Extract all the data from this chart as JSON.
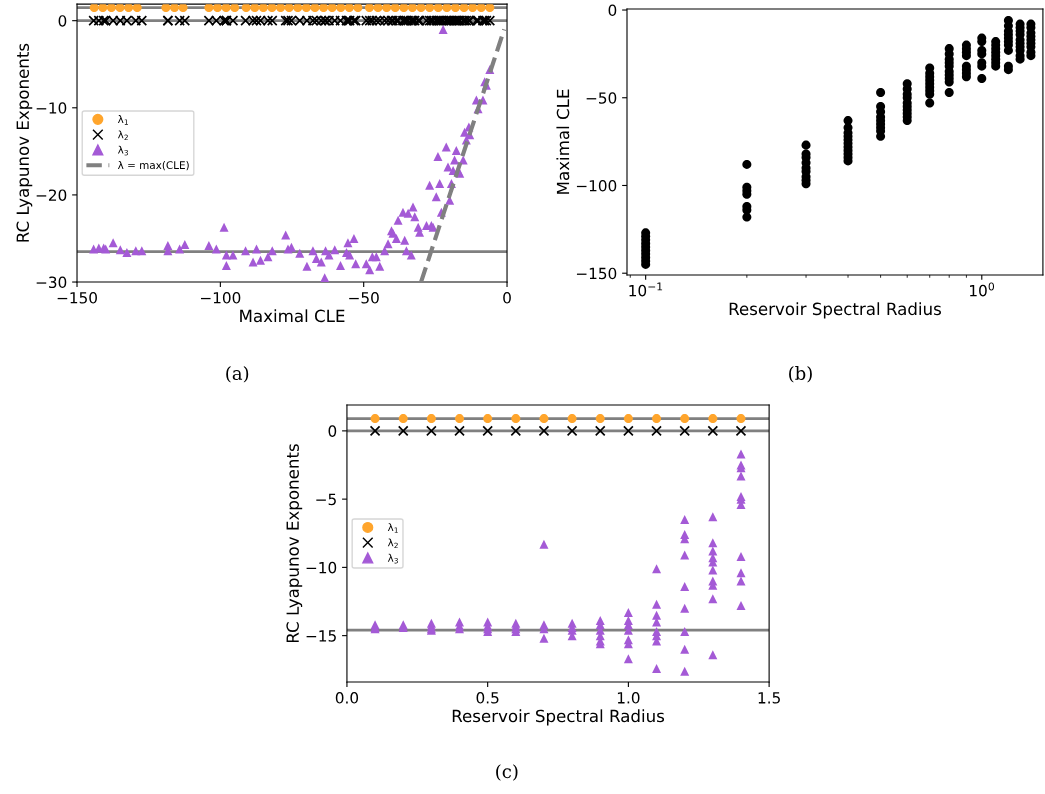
{
  "chart_data": [
    {
      "type": "scatter",
      "xlabel": "Maximal CLE",
      "ylabel": "RC Lyapunov Exponents",
      "annotations": [
        "(a)"
      ],
      "xlim": [
        -150,
        0
      ],
      "ylim": [
        -30,
        1.9
      ],
      "xticks": [
        {
          "value": -150,
          "label": "−150"
        },
        {
          "value": -100,
          "label": "−100"
        },
        {
          "value": -50,
          "label": "−50"
        },
        0
      ],
      "yticks": [
        {
          "value": -30,
          "label": "−30"
        },
        {
          "value": -20,
          "label": "−20"
        },
        {
          "value": -10,
          "label": "−10"
        },
        0
      ],
      "legend": "left",
      "ref_lines": [
        {
          "axis": "y",
          "value": 1.5,
          "color": "#808080"
        },
        {
          "axis": "y",
          "value": 0,
          "color": "#808080"
        },
        {
          "axis": "y",
          "value": -26.5,
          "color": "#808080"
        }
      ],
      "x": [
        -144.2,
        -142.4,
        -140.7,
        -140,
        -137.4,
        -134.9,
        -132.6,
        -129.5,
        -127.4,
        -118.3,
        -118.3,
        -114.2,
        -112.4,
        -104,
        -101.4,
        -98.7,
        -97.9,
        -97.9,
        -95.6,
        -91.2,
        -88.6,
        -87.4,
        -86,
        -83.4,
        -81.9,
        -77.2,
        -76.4,
        -75.2,
        -72.3,
        -69.8,
        -67.7,
        -66.5,
        -64.8,
        -63.6,
        -63.3,
        -62.1,
        -60.1,
        -58.1,
        -56,
        -55.5,
        -54.9,
        -53.4,
        -52.8,
        -49.1,
        -47.9,
        -47,
        -45.6,
        -44.4,
        -42.7,
        -41.5,
        -40.3,
        -39.8,
        -38.6,
        -38,
        -36.3,
        -35.7,
        -35.1,
        -34.5,
        -33.4,
        -32.8,
        -32.2,
        -31,
        -30.5,
        -28.1,
        -27,
        -26.4,
        -25.8,
        -24.7,
        -24.1,
        -23.5,
        -22.9,
        -22.3,
        -21.2,
        -20.6,
        -20,
        -19.4,
        -18.8,
        -18.3,
        -17.7,
        -17.1,
        -16.5,
        -15.3,
        -14.8,
        -14.2,
        -13.3,
        -13,
        -10.7,
        -10.1,
        -8.4,
        -7.8,
        -7.2,
        -6
      ],
      "series": [
        {
          "name": "λ$_{1}$",
          "type": "scatter",
          "marker": "circle",
          "color": "#ffa52c",
          "x": [
            -144,
            -141,
            -138,
            -135,
            -132,
            -129,
            -119,
            -116,
            -113,
            -104,
            -101,
            -98,
            -95,
            -91,
            -88,
            -85,
            -82,
            -79,
            -76,
            -73,
            -70,
            -67,
            -64,
            -61,
            -58,
            -55,
            -52,
            -48,
            -45,
            -42,
            -39,
            -36,
            -33,
            -30,
            -27,
            -24,
            -21,
            -18,
            -15,
            -12,
            -9,
            -6
          ],
          "values": [
            1.5,
            1.5,
            1.5,
            1.5,
            1.5,
            1.5,
            1.5,
            1.5,
            1.5,
            1.5,
            1.5,
            1.5,
            1.5,
            1.5,
            1.5,
            1.5,
            1.5,
            1.5,
            1.5,
            1.5,
            1.5,
            1.5,
            1.5,
            1.5,
            1.5,
            1.5,
            1.5,
            1.5,
            1.5,
            1.5,
            1.5,
            1.5,
            1.5,
            1.5,
            1.5,
            1.5,
            1.5,
            1.5,
            1.5,
            1.5,
            1.5,
            1.5
          ]
        },
        {
          "name": "λ$_{2}$",
          "type": "scatter",
          "marker": "cross",
          "color": "#000000",
          "values": [
            0,
            0,
            0,
            0,
            0,
            0,
            0,
            0,
            0,
            0,
            0,
            0,
            0,
            0,
            0,
            0,
            0,
            0,
            0,
            0,
            0,
            0,
            0,
            0,
            0,
            0,
            0,
            0,
            0,
            0,
            0,
            0,
            0,
            0,
            0,
            0,
            0,
            0,
            0,
            0,
            0,
            0,
            0,
            0,
            0,
            0,
            0,
            0,
            0,
            0,
            0,
            0,
            0,
            0,
            0,
            0,
            0,
            0,
            0,
            0,
            0,
            0,
            0,
            0,
            0,
            0,
            0,
            0,
            0,
            0,
            0,
            0,
            0,
            0,
            0,
            0,
            0,
            0,
            0,
            0,
            0,
            0,
            0,
            0,
            0,
            0,
            0,
            0,
            0,
            0,
            0,
            0
          ]
        },
        {
          "name": "λ$_{3}$",
          "type": "scatter",
          "marker": "triangle",
          "color": "#a45ad6",
          "values": [
            -26.2,
            -26.1,
            -26.1,
            -26.2,
            -25.5,
            -26.3,
            -26.6,
            -26.4,
            -26.4,
            -25.8,
            -26.4,
            -26.2,
            -25.7,
            -25.8,
            -26.2,
            -23.7,
            -28.1,
            -26.9,
            -26.9,
            -26.4,
            -27.7,
            -26.2,
            -27.5,
            -27.1,
            -26.4,
            -24.6,
            -26.2,
            -26,
            -26.7,
            -28.2,
            -26.4,
            -27.3,
            -27.7,
            -29.5,
            -26.4,
            -26.9,
            -26.3,
            -28.1,
            -26.6,
            -25.5,
            -26.9,
            -25,
            -27.9,
            -27.9,
            -28.6,
            -27.1,
            -27.1,
            -28.2,
            -26.4,
            -25.6,
            -24.1,
            -24.4,
            -25,
            -22.9,
            -22,
            -25.2,
            -26.4,
            -22.1,
            -26.9,
            -21.4,
            -22.5,
            -23.7,
            -24.3,
            -23.5,
            -18.9,
            -23.5,
            -23.7,
            -20.2,
            -15.6,
            -18.7,
            -22,
            -1,
            -14.5,
            -16.8,
            -20.6,
            -18.7,
            -17.2,
            -16,
            -14.9,
            -17.2,
            -17.5,
            -16,
            -12.8,
            -13.7,
            -12.2,
            -13.1,
            -9.1,
            -10.1,
            -9.1,
            -7,
            -7.4,
            -5.6
          ]
        },
        {
          "name": "λ = max(CLE)",
          "type": "line",
          "line_style": "dashed",
          "color": "#808080",
          "x": [
            -30,
            -1
          ],
          "values": [
            -30,
            -1
          ]
        }
      ]
    },
    {
      "type": "scatter",
      "xlabel": "Reservoir Spectral Radius",
      "ylabel": "Maximal CLE",
      "annotations": [
        "(b)"
      ],
      "log": "x",
      "xlim": [
        0.088,
        1.52
      ],
      "ylim": [
        -151,
        0.6
      ],
      "xticks": [
        {
          "value": 0.1,
          "label": "10$^{−1}$"
        },
        {
          "value": 1,
          "label": "10$^{0}$"
        }
      ],
      "yticks": [
        {
          "value": -150,
          "label": "−150"
        },
        {
          "value": -100,
          "label": "−100"
        },
        {
          "value": -50,
          "label": "−50"
        },
        0
      ],
      "series": [
        {
          "marker": "circle",
          "color": "#000000",
          "x": [
            0.1,
            0.1,
            0.1,
            0.1,
            0.1,
            0.1,
            0.1,
            0.1,
            0.1,
            0.1,
            0.2,
            0.2,
            0.2,
            0.2,
            0.2,
            0.2,
            0.2,
            0.3,
            0.3,
            0.3,
            0.3,
            0.3,
            0.3,
            0.3,
            0.3,
            0.3,
            0.4,
            0.4,
            0.4,
            0.4,
            0.4,
            0.4,
            0.4,
            0.4,
            0.4,
            0.4,
            0.4,
            0.5,
            0.5,
            0.5,
            0.5,
            0.5,
            0.5,
            0.5,
            0.5,
            0.5,
            0.6,
            0.6,
            0.6,
            0.6,
            0.6,
            0.6,
            0.6,
            0.6,
            0.6,
            0.6,
            0.7,
            0.7,
            0.7,
            0.7,
            0.7,
            0.7,
            0.7,
            0.7,
            0.7,
            0.8,
            0.8,
            0.8,
            0.8,
            0.8,
            0.8,
            0.8,
            0.8,
            0.8,
            0.8,
            0.9,
            0.9,
            0.9,
            0.9,
            0.9,
            0.9,
            0.9,
            0.9,
            1.0,
            1.0,
            1.0,
            1.0,
            1.0,
            1.0,
            1.0,
            1.1,
            1.1,
            1.1,
            1.1,
            1.1,
            1.1,
            1.1,
            1.1,
            1.2,
            1.2,
            1.2,
            1.2,
            1.2,
            1.2,
            1.2,
            1.2,
            1.2,
            1.2,
            1.3,
            1.3,
            1.3,
            1.3,
            1.3,
            1.3,
            1.3,
            1.3,
            1.3,
            1.3,
            1.4,
            1.4,
            1.4,
            1.4,
            1.4,
            1.4,
            1.4,
            1.4,
            1.4
          ],
          "values": [
            -127,
            -129,
            -131,
            -133,
            -135,
            -137,
            -139,
            -141,
            -143,
            -145,
            -88,
            -101,
            -103,
            -105,
            -112,
            -114,
            -118,
            -77,
            -82,
            -84,
            -87,
            -90,
            -92,
            -95,
            -97,
            -99,
            -63,
            -67,
            -70,
            -72,
            -74,
            -76,
            -78,
            -80,
            -82,
            -84,
            -86,
            -47,
            -55,
            -58,
            -61,
            -63,
            -65,
            -67,
            -69,
            -72,
            -42,
            -45,
            -48,
            -50,
            -53,
            -55,
            -57,
            -59,
            -61,
            -63,
            -33,
            -36,
            -38,
            -40,
            -42,
            -44,
            -46,
            -48,
            -53,
            -22,
            -25,
            -28,
            -30,
            -32,
            -35,
            -37,
            -39,
            -41,
            -47,
            -20,
            -22,
            -24,
            -26,
            -32,
            -34,
            -36,
            -38,
            -16,
            -18,
            -23,
            -25,
            -30,
            -32,
            -39,
            -18,
            -20,
            -22,
            -24,
            -26,
            -28,
            -30,
            -32,
            -6,
            -9,
            -12,
            -14,
            -16,
            -18,
            -20,
            -23,
            -32,
            -34,
            -8,
            -10,
            -12,
            -14,
            -17,
            -19,
            -21,
            -23,
            -26,
            -28,
            -8,
            -10,
            -13,
            -15,
            -17,
            -19,
            -21,
            -24,
            -26
          ]
        }
      ]
    },
    {
      "type": "scatter",
      "xlabel": "Reservoir Spectral Radius",
      "ylabel": "RC Lyapunov Exponents",
      "annotations": [
        "(c)"
      ],
      "xlim": [
        0,
        1.5
      ],
      "ylim": [
        -18.4,
        1.9
      ],
      "xticks": [
        {
          "value": 0,
          "label": "0.0"
        },
        0.5,
        {
          "value": 1,
          "label": "1.0"
        },
        1.5
      ],
      "yticks": [
        {
          "value": -15,
          "label": "−15"
        },
        {
          "value": -10,
          "label": "−10"
        },
        {
          "value": -5,
          "label": "−5"
        },
        0
      ],
      "legend": "left",
      "ref_lines": [
        {
          "axis": "y",
          "value": 0.9,
          "color": "#808080"
        },
        {
          "axis": "y",
          "value": 0,
          "color": "#808080"
        },
        {
          "axis": "y",
          "value": -14.6,
          "color": "#808080"
        }
      ],
      "series": [
        {
          "name": "λ$_{1}$",
          "marker": "circle",
          "color": "#ffa52c",
          "x": [
            0.1,
            0.2,
            0.3,
            0.4,
            0.5,
            0.6,
            0.7,
            0.8,
            0.9,
            1.0,
            1.1,
            1.2,
            1.3,
            1.4
          ],
          "values": [
            0.9,
            0.9,
            0.9,
            0.9,
            0.9,
            0.9,
            0.9,
            0.9,
            0.9,
            0.9,
            0.9,
            0.9,
            0.9,
            0.9
          ]
        },
        {
          "name": "λ$_{2}$",
          "marker": "cross",
          "color": "#000000",
          "x": [
            0.1,
            0.2,
            0.3,
            0.4,
            0.5,
            0.6,
            0.7,
            0.8,
            0.9,
            1.0,
            1.1,
            1.2,
            1.3,
            1.4
          ],
          "values": [
            0,
            0,
            0,
            0,
            0,
            0,
            0,
            0,
            0,
            0,
            0,
            0,
            0,
            0
          ]
        },
        {
          "name": "λ$_{3}$",
          "marker": "triangle",
          "color": "#a45ad6",
          "x": [
            0.1,
            0.1,
            0.1,
            0.2,
            0.2,
            0.3,
            0.3,
            0.3,
            0.3,
            0.4,
            0.4,
            0.4,
            0.5,
            0.5,
            0.5,
            0.5,
            0.6,
            0.6,
            0.6,
            0.6,
            0.7,
            0.7,
            0.7,
            0.7,
            0.8,
            0.8,
            0.8,
            0.8,
            0.9,
            0.9,
            0.9,
            0.9,
            0.9,
            0.9,
            1.0,
            1.0,
            1.0,
            1.0,
            1.0,
            1.0,
            1.0,
            1.1,
            1.1,
            1.1,
            1.1,
            1.1,
            1.1,
            1.1,
            1.1,
            1.2,
            1.2,
            1.2,
            1.2,
            1.2,
            1.2,
            1.2,
            1.2,
            1.2,
            1.3,
            1.3,
            1.3,
            1.3,
            1.3,
            1.3,
            1.3,
            1.3,
            1.3,
            1.3,
            1.4,
            1.4,
            1.4,
            1.4,
            1.4,
            1.4,
            1.4,
            1.4,
            1.4,
            1.4,
            1.4
          ],
          "values": [
            -14.2,
            -14.4,
            -14.5,
            -14.2,
            -14.4,
            -14.1,
            -14.3,
            -14.5,
            -14.6,
            -14,
            -14.3,
            -14.5,
            -14,
            -14.3,
            -14.5,
            -14.7,
            -14.1,
            -14.3,
            -14.5,
            -14.7,
            -8.3,
            -14.2,
            -14.5,
            -15.2,
            -14.1,
            -14.4,
            -14.6,
            -15,
            -13.9,
            -14.2,
            -14.6,
            -15,
            -15.4,
            -15.6,
            -13.3,
            -13.9,
            -14.2,
            -14.6,
            -15.3,
            -15.6,
            -16.7,
            -10.1,
            -12.7,
            -13.5,
            -14,
            -14.7,
            -15,
            -15.4,
            -17.4,
            -6.5,
            -7.6,
            -7.9,
            -9.1,
            -11.4,
            -13,
            -14.7,
            -16,
            -17.6,
            -6.3,
            -8.2,
            -8.8,
            -9.3,
            -9.6,
            -10.2,
            -11,
            -11.3,
            -12.3,
            -16.4,
            -1.7,
            -2.5,
            -2.7,
            -3.3,
            -4.8,
            -5,
            -5.4,
            -9.2,
            -10.4,
            -11,
            -12.8
          ]
        }
      ]
    }
  ]
}
